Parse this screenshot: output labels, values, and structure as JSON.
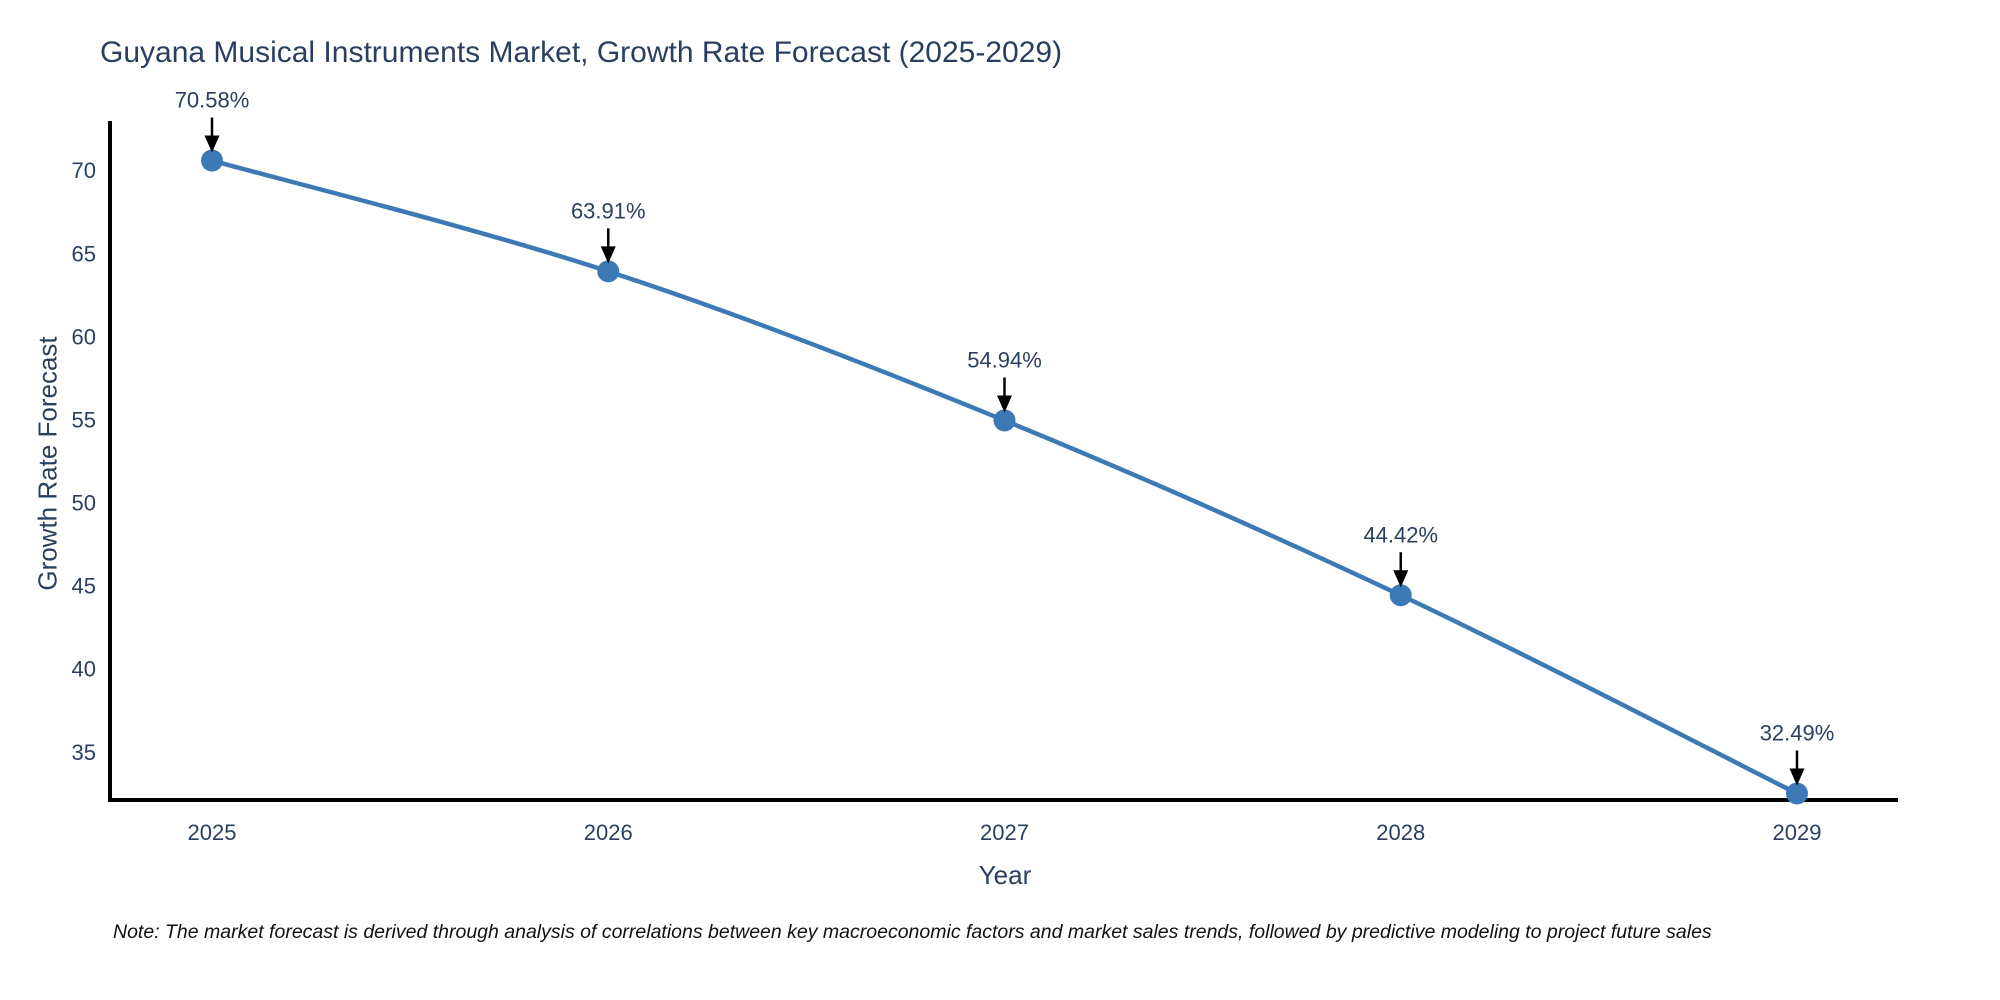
{
  "page": {
    "background_color": "#ffffff"
  },
  "note": "Note: The market forecast is derived through analysis of correlations between key macroeconomic factors and market sales trends, followed by predictive modeling to project future sales",
  "chart_data": {
    "type": "line",
    "title": "Guyana Musical Instruments Market, Growth Rate Forecast (2025-2029)",
    "xlabel": "Year",
    "ylabel": "Growth Rate Forecast",
    "x": [
      2025,
      2026,
      2027,
      2028,
      2029
    ],
    "categories": [
      "2025",
      "2026",
      "2027",
      "2028",
      "2029"
    ],
    "series": [
      {
        "name": "Growth Rate Forecast",
        "values": [
          70.58,
          63.91,
          54.94,
          44.42,
          32.49
        ]
      }
    ],
    "point_labels": [
      "70.58%",
      "63.91%",
      "54.94%",
      "44.42%",
      "32.49%"
    ],
    "y_ticks": [
      35,
      40,
      45,
      50,
      55,
      60,
      65,
      70
    ],
    "ylim": [
      32.1,
      72.96
    ],
    "grid": false,
    "legend_position": "none",
    "line_shape": "spline",
    "markers": true,
    "colors": {
      "line": "#3d7ab5",
      "marker": "#3d7ab5",
      "axis_line": "#000000",
      "text": "#2a3f5f",
      "annotation_arrow": "#000000",
      "note_text": "#111111",
      "background": "#ffffff"
    }
  }
}
